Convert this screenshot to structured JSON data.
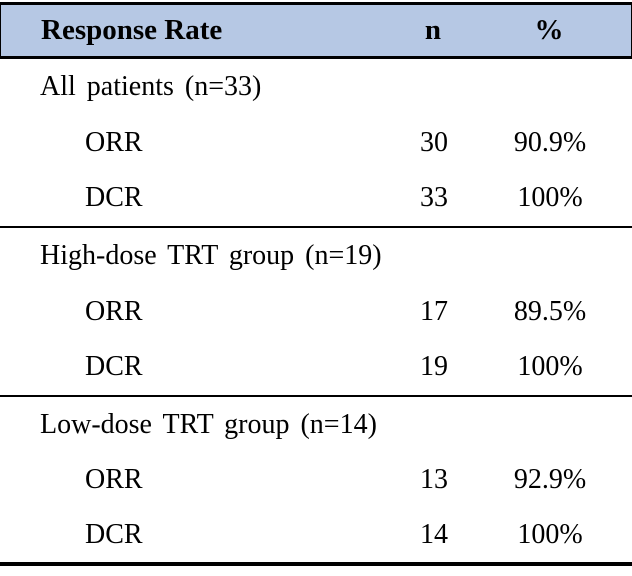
{
  "table": {
    "colors": {
      "header_bg": "#b6c8e4",
      "border": "#000000",
      "text": "#000000"
    },
    "header": {
      "col_label": "Response Rate",
      "col_n": "n",
      "col_pct": "%"
    },
    "sections": [
      {
        "title": "All patients (n=33)",
        "rows": [
          {
            "label": "ORR",
            "n": "30",
            "pct": "90.9%"
          },
          {
            "label": "DCR",
            "n": "33",
            "pct": "100%"
          }
        ]
      },
      {
        "title": "High-dose TRT group (n=19)",
        "rows": [
          {
            "label": "ORR",
            "n": "17",
            "pct": "89.5%"
          },
          {
            "label": "DCR",
            "n": "19",
            "pct": "100%"
          }
        ]
      },
      {
        "title": "Low-dose TRT group (n=14)",
        "rows": [
          {
            "label": "ORR",
            "n": "13",
            "pct": "92.9%"
          },
          {
            "label": "DCR",
            "n": "14",
            "pct": "100%"
          }
        ]
      }
    ]
  }
}
